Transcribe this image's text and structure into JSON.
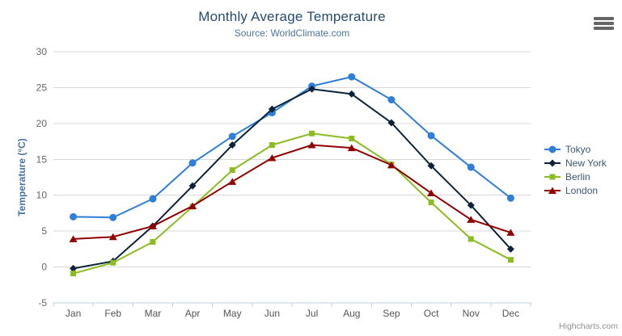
{
  "header": {
    "title": "Monthly Average Temperature",
    "subtitle": "Source: WorldClimate.com"
  },
  "exporting": {
    "menu_icon": "hamburger-icon"
  },
  "credits": {
    "label": "Highcharts.com"
  },
  "colors": {
    "title": "#274b6d",
    "subtitle": "#4d759e",
    "grid": "#d8d8d8",
    "axis_line": "#c0d0e0",
    "x_tick_label": "#555555",
    "y_tick_label": "#666666",
    "axis_title": "#4572a7",
    "legend_text": "#3e576f",
    "credits_text": "#909090",
    "menu_icon": "#666666"
  },
  "chart_data": {
    "type": "line",
    "title": "Monthly Average Temperature",
    "subtitle": "Source: WorldClimate.com",
    "categories": [
      "Jan",
      "Feb",
      "Mar",
      "Apr",
      "May",
      "Jun",
      "Jul",
      "Aug",
      "Sep",
      "Oct",
      "Nov",
      "Dec"
    ],
    "series": [
      {
        "name": "Tokyo",
        "color": "#2f7ed8",
        "marker": "circle",
        "values": [
          7.0,
          6.9,
          9.5,
          14.5,
          18.2,
          21.5,
          25.2,
          26.5,
          23.3,
          18.3,
          13.9,
          9.6
        ]
      },
      {
        "name": "New York",
        "color": "#0d233a",
        "marker": "diamond",
        "values": [
          -0.2,
          0.8,
          5.7,
          11.3,
          17.0,
          22.0,
          24.8,
          24.1,
          20.1,
          14.1,
          8.6,
          2.5
        ]
      },
      {
        "name": "Berlin",
        "color": "#8bbc21",
        "marker": "square",
        "values": [
          -0.9,
          0.6,
          3.5,
          8.4,
          13.5,
          17.0,
          18.6,
          17.9,
          14.3,
          9.0,
          3.9,
          1.0
        ]
      },
      {
        "name": "London",
        "color": "#910000",
        "marker": "triangle",
        "values": [
          3.9,
          4.2,
          5.7,
          8.5,
          11.9,
          15.2,
          17.0,
          16.6,
          14.2,
          10.3,
          6.6,
          4.8
        ]
      }
    ],
    "xlabel": "",
    "ylabel": "Temperature (°C)",
    "ylim": [
      -5,
      30
    ],
    "yticks": [
      -5,
      0,
      5,
      10,
      15,
      20,
      25,
      30
    ],
    "grid": true,
    "legend_position": "right"
  }
}
